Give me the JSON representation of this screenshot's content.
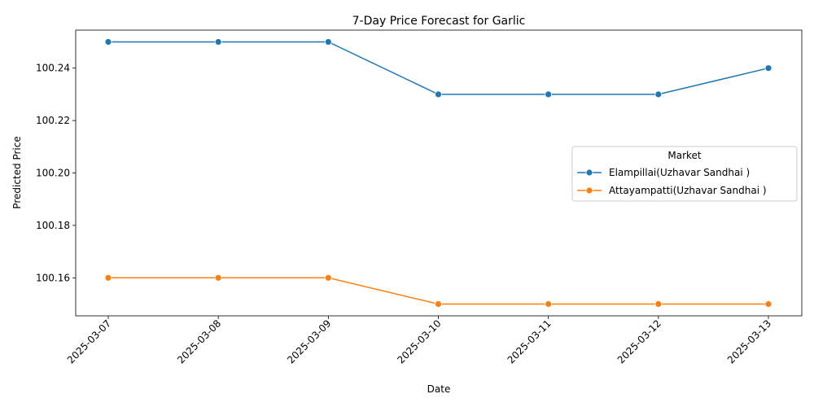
{
  "chart_data": {
    "type": "line",
    "title": "7-Day Price Forecast for Garlic",
    "xlabel": "Date",
    "ylabel": "Predicted Price",
    "x": [
      "2025-03-07",
      "2025-03-08",
      "2025-03-09",
      "2025-03-10",
      "2025-03-11",
      "2025-03-12",
      "2025-03-13"
    ],
    "series": [
      {
        "name": "Elampillai(Uzhavar Sandhai )",
        "color": "#1f77b4",
        "values": [
          100.25,
          100.25,
          100.25,
          100.23,
          100.23,
          100.23,
          100.24
        ]
      },
      {
        "name": "Attayampatti(Uzhavar Sandhai )",
        "color": "#ff7f0e",
        "values": [
          100.16,
          100.16,
          100.16,
          100.15,
          100.15,
          100.15,
          100.15
        ]
      }
    ],
    "ylim": [
      100.1455,
      100.2545
    ],
    "yticks": [
      "100.16",
      "100.18",
      "100.20",
      "100.22",
      "100.24"
    ],
    "legend": {
      "title": "Market",
      "position": "center-right"
    },
    "grid": false
  }
}
